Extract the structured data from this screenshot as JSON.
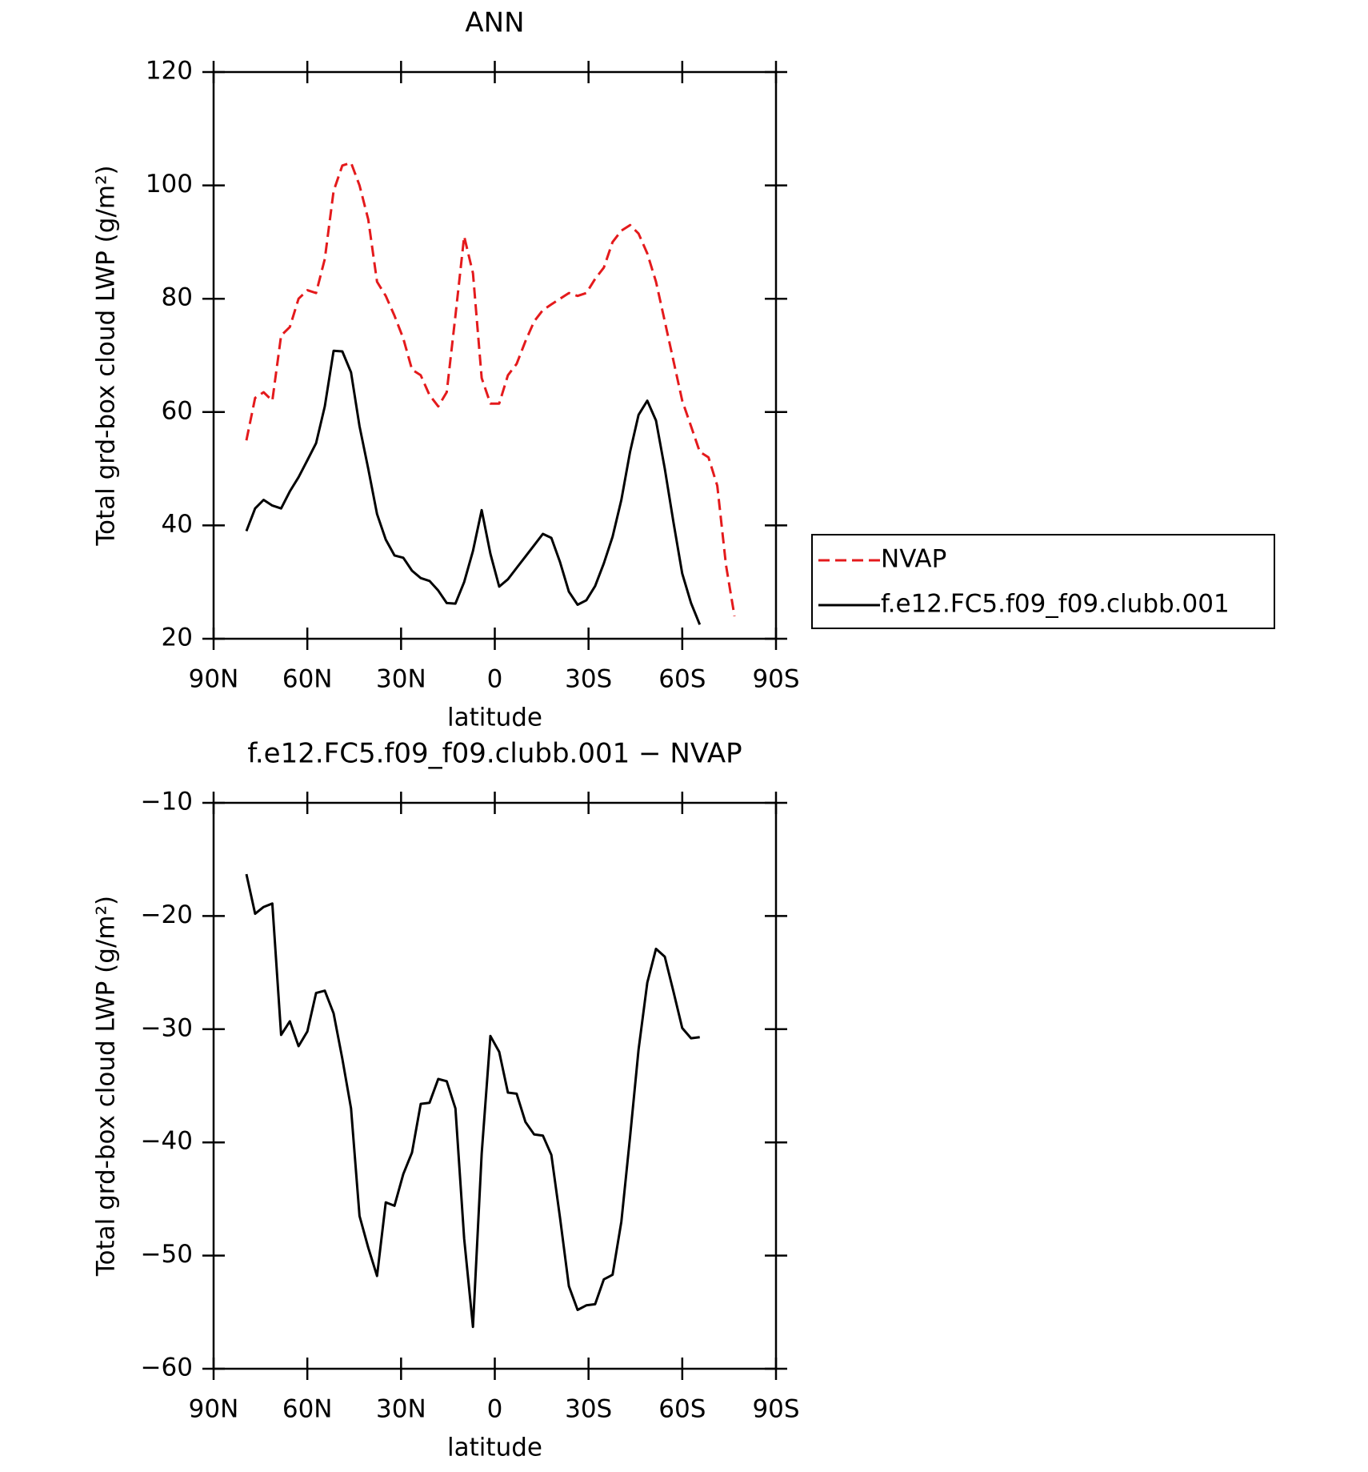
{
  "chart_data": [
    {
      "type": "line",
      "title": "ANN",
      "x_label": "latitude",
      "y_label": "Total grd-box cloud LWP (g/m²)",
      "x": [
        79.5,
        76.7,
        74.0,
        71.2,
        68.4,
        65.6,
        62.8,
        60.0,
        57.2,
        54.4,
        51.6,
        48.8,
        46.0,
        43.3,
        40.5,
        37.7,
        34.9,
        32.1,
        29.3,
        26.5,
        23.7,
        20.9,
        18.1,
        15.4,
        12.6,
        9.8,
        7.0,
        4.2,
        1.4,
        -1.4,
        -4.2,
        -7.0,
        -9.8,
        -12.6,
        -15.4,
        -18.1,
        -20.9,
        -23.7,
        -26.5,
        -29.3,
        -32.1,
        -34.9,
        -37.7,
        -40.5,
        -43.3,
        -46.0,
        -48.8,
        -51.6,
        -54.4,
        -57.2,
        -60.0,
        -62.8,
        -65.6,
        -68.4,
        -71.2,
        -74.0,
        -76.7
      ],
      "series": [
        {
          "name": "NVAP",
          "color": "#e41a1c",
          "dash": true,
          "values": [
            55,
            62.5,
            63.5,
            62,
            73.5,
            75,
            80,
            81.5,
            81,
            87,
            99,
            103.5,
            104,
            100,
            94,
            83,
            80.5,
            77,
            73,
            67.5,
            66.5,
            63,
            61,
            63.5,
            77,
            91,
            84.5,
            66,
            61.5,
            61.5,
            66.5,
            68.5,
            72.5,
            76,
            78,
            79,
            80,
            81,
            80.5,
            81,
            83.5,
            85.5,
            90,
            92,
            93,
            91.5,
            88,
            83,
            76,
            69,
            62,
            57.5,
            53,
            52,
            47,
            33,
            24
          ]
        },
        {
          "name": "f.e12.FC5.f09_f09.clubb.001",
          "color": "#000000",
          "dash": false,
          "values": [
            39,
            43,
            44.5,
            43.5,
            43,
            46,
            48.5,
            51.5,
            54.5,
            61,
            70.8,
            70.7,
            67,
            57.5,
            50,
            42,
            37.5,
            34.7,
            34.3,
            32,
            30.7,
            30.2,
            28.5,
            26.3,
            26.2,
            30,
            35.5,
            42.7,
            35,
            29.2,
            30.5,
            32.5,
            34.5,
            36.5,
            38.5,
            37.8,
            33.5,
            28.3,
            26,
            26.8,
            29.3,
            33.3,
            38,
            44.5,
            53,
            59.5,
            62,
            58.5,
            50,
            40.5,
            31.5,
            26.3,
            22.5,
            null,
            null,
            null,
            null
          ]
        }
      ],
      "xlim": [
        90,
        -90
      ],
      "xticks": [
        {
          "value": 90,
          "label": "90N"
        },
        {
          "value": 60,
          "label": "60N"
        },
        {
          "value": 30,
          "label": "30N"
        },
        0,
        {
          "value": -30,
          "label": "30S"
        },
        {
          "value": -60,
          "label": "60S"
        },
        {
          "value": -90,
          "label": "90S"
        }
      ],
      "ylim": [
        20,
        120
      ],
      "yticks": [
        20,
        40,
        60,
        80,
        100,
        120
      ],
      "legend": "right"
    },
    {
      "type": "line",
      "title": "f.e12.FC5.f09_f09.clubb.001 − NVAP",
      "x_label": "latitude",
      "y_label": "Total grd-box cloud LWP (g/m²)",
      "x": [
        79.5,
        76.7,
        74.0,
        71.2,
        68.4,
        65.6,
        62.8,
        60.0,
        57.2,
        54.4,
        51.6,
        48.8,
        46.0,
        43.3,
        40.5,
        37.7,
        34.9,
        32.1,
        29.3,
        26.5,
        23.7,
        20.9,
        18.1,
        15.4,
        12.6,
        9.8,
        7.0,
        4.2,
        1.4,
        -1.4,
        -4.2,
        -7.0,
        -9.8,
        -12.6,
        -15.4,
        -18.1,
        -20.9,
        -23.7,
        -26.5,
        -29.3,
        -32.1,
        -34.9,
        -37.7,
        -40.5,
        -43.3,
        -46.0,
        -48.8,
        -51.6,
        -54.4,
        -57.2,
        -60.0,
        -62.8,
        -65.6
      ],
      "values": [
        -16.3,
        -19.8,
        -19.2,
        -18.9,
        -30.5,
        -29.3,
        -31.5,
        -30.2,
        -26.8,
        -26.6,
        -28.6,
        -32.6,
        -37,
        -46.5,
        -49.3,
        -51.8,
        -45.3,
        -45.6,
        -42.8,
        -40.9,
        -36.6,
        -36.5,
        -34.4,
        -34.6,
        -37,
        -48.5,
        -56.3,
        -41,
        -30.6,
        -32,
        -35.6,
        -35.7,
        -38.2,
        -39.3,
        -39.4,
        -41.1,
        -46.7,
        -52.7,
        -54.8,
        -54.4,
        -54.3,
        -52.1,
        -51.7,
        -47,
        -39.5,
        -31.8,
        -25.9,
        -22.9,
        -23.6,
        -26.7,
        -29.9,
        -30.8,
        -30.7
      ],
      "color": "#000000",
      "xlim": [
        90,
        -90
      ],
      "xticks": [
        {
          "value": 90,
          "label": "90N"
        },
        {
          "value": 60,
          "label": "60N"
        },
        {
          "value": 30,
          "label": "30N"
        },
        0,
        {
          "value": -30,
          "label": "30S"
        },
        {
          "value": -60,
          "label": "60S"
        },
        {
          "value": -90,
          "label": "90S"
        }
      ],
      "ylim": [
        -60,
        -10
      ],
      "yticks": [
        {
          "value": -60,
          "label": "−60"
        },
        {
          "value": -50,
          "label": "−50"
        },
        {
          "value": -40,
          "label": "−40"
        },
        {
          "value": -30,
          "label": "−30"
        },
        {
          "value": -20,
          "label": "−20"
        },
        {
          "value": -10,
          "label": "−10"
        }
      ]
    }
  ]
}
